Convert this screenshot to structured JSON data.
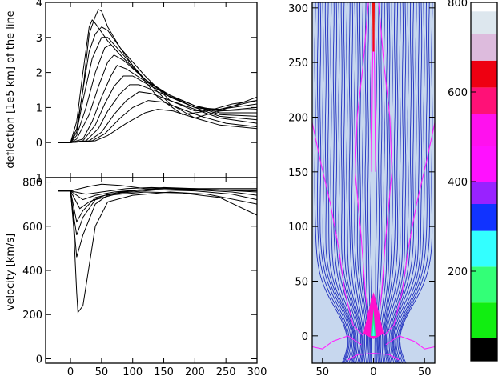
{
  "chart_data": [
    {
      "type": "line",
      "ylabel": "deflection [1e5 km] of the line",
      "xlim": [
        -40,
        300
      ],
      "ylim": [
        -1,
        4
      ],
      "xticks": [
        0,
        50,
        100,
        150,
        200,
        250,
        300
      ],
      "xtick_labels_shown": false,
      "yticks": [
        -1,
        0,
        1,
        2,
        3,
        4
      ],
      "ytick_labels": [
        "-1",
        "0",
        "1",
        "2",
        "3",
        "4"
      ],
      "series": [
        {
          "values": [
            [
              -20,
              0
            ],
            [
              0,
              0
            ],
            [
              10,
              0.3
            ],
            [
              20,
              1.5
            ],
            [
              30,
              3.1
            ],
            [
              40,
              3.6
            ],
            [
              45,
              3.8
            ],
            [
              50,
              3.75
            ],
            [
              60,
              3.3
            ],
            [
              80,
              2.7
            ],
            [
              100,
              2.2
            ],
            [
              140,
              1.3
            ],
            [
              180,
              0.8
            ],
            [
              220,
              0.9
            ],
            [
              260,
              1.1
            ],
            [
              300,
              1.2
            ]
          ]
        },
        {
          "values": [
            [
              -20,
              0
            ],
            [
              0,
              0
            ],
            [
              10,
              0.6
            ],
            [
              20,
              2.0
            ],
            [
              30,
              3.3
            ],
            [
              35,
              3.5
            ],
            [
              40,
              3.4
            ],
            [
              60,
              2.9
            ],
            [
              80,
              2.5
            ],
            [
              120,
              1.8
            ],
            [
              160,
              1.1
            ],
            [
              200,
              0.7
            ],
            [
              240,
              0.9
            ],
            [
              300,
              1.3
            ]
          ]
        },
        {
          "values": [
            [
              -20,
              0
            ],
            [
              0,
              0
            ],
            [
              10,
              0.4
            ],
            [
              20,
              1.5
            ],
            [
              30,
              2.6
            ],
            [
              40,
              3.1
            ],
            [
              50,
              3.3
            ],
            [
              60,
              3.2
            ],
            [
              80,
              2.7
            ],
            [
              120,
              1.9
            ],
            [
              160,
              1.2
            ],
            [
              200,
              0.9
            ],
            [
              240,
              0.95
            ],
            [
              300,
              1.2
            ]
          ]
        },
        {
          "values": [
            [
              -20,
              0
            ],
            [
              0,
              0
            ],
            [
              10,
              0.3
            ],
            [
              20,
              1.2
            ],
            [
              35,
              2.4
            ],
            [
              50,
              3.0
            ],
            [
              60,
              3.0
            ],
            [
              80,
              2.6
            ],
            [
              120,
              1.8
            ],
            [
              160,
              1.3
            ],
            [
              200,
              1.0
            ],
            [
              240,
              0.95
            ],
            [
              300,
              1.1
            ]
          ]
        },
        {
          "values": [
            [
              -20,
              0
            ],
            [
              0,
              0
            ],
            [
              10,
              0.2
            ],
            [
              25,
              1.0
            ],
            [
              40,
              2.0
            ],
            [
              55,
              2.7
            ],
            [
              65,
              2.8
            ],
            [
              80,
              2.5
            ],
            [
              120,
              1.8
            ],
            [
              160,
              1.3
            ],
            [
              200,
              1.0
            ],
            [
              240,
              0.9
            ],
            [
              300,
              1.0
            ]
          ]
        },
        {
          "values": [
            [
              -20,
              0
            ],
            [
              0,
              0
            ],
            [
              10,
              0.1
            ],
            [
              30,
              0.8
            ],
            [
              45,
              1.6
            ],
            [
              60,
              2.3
            ],
            [
              70,
              2.5
            ],
            [
              85,
              2.35
            ],
            [
              120,
              1.8
            ],
            [
              160,
              1.35
            ],
            [
              200,
              1.05
            ],
            [
              240,
              0.9
            ],
            [
              300,
              0.95
            ]
          ]
        },
        {
          "values": [
            [
              -20,
              0
            ],
            [
              0,
              0
            ],
            [
              20,
              0.1
            ],
            [
              35,
              0.6
            ],
            [
              50,
              1.3
            ],
            [
              65,
              1.9
            ],
            [
              75,
              2.2
            ],
            [
              90,
              2.1
            ],
            [
              120,
              1.75
            ],
            [
              160,
              1.35
            ],
            [
              200,
              1.05
            ],
            [
              240,
              0.85
            ],
            [
              300,
              0.85
            ]
          ]
        },
        {
          "values": [
            [
              -20,
              0
            ],
            [
              0,
              0
            ],
            [
              20,
              0.05
            ],
            [
              40,
              0.5
            ],
            [
              55,
              1.1
            ],
            [
              70,
              1.6
            ],
            [
              85,
              1.9
            ],
            [
              100,
              1.9
            ],
            [
              130,
              1.6
            ],
            [
              160,
              1.35
            ],
            [
              200,
              1.05
            ],
            [
              240,
              0.8
            ],
            [
              300,
              0.75
            ]
          ]
        },
        {
          "values": [
            [
              -20,
              0
            ],
            [
              0,
              0
            ],
            [
              25,
              0.05
            ],
            [
              45,
              0.4
            ],
            [
              60,
              0.9
            ],
            [
              80,
              1.4
            ],
            [
              95,
              1.65
            ],
            [
              110,
              1.65
            ],
            [
              140,
              1.45
            ],
            [
              170,
              1.25
            ],
            [
              200,
              1.0
            ],
            [
              240,
              0.75
            ],
            [
              300,
              0.65
            ]
          ]
        },
        {
          "values": [
            [
              -20,
              0
            ],
            [
              0,
              0
            ],
            [
              30,
              0.05
            ],
            [
              50,
              0.3
            ],
            [
              70,
              0.8
            ],
            [
              90,
              1.2
            ],
            [
              110,
              1.45
            ],
            [
              130,
              1.4
            ],
            [
              160,
              1.2
            ],
            [
              200,
              0.95
            ],
            [
              240,
              0.7
            ],
            [
              300,
              0.55
            ]
          ]
        },
        {
          "values": [
            [
              -20,
              0
            ],
            [
              0,
              0
            ],
            [
              35,
              0.05
            ],
            [
              55,
              0.25
            ],
            [
              80,
              0.7
            ],
            [
              100,
              1.0
            ],
            [
              125,
              1.2
            ],
            [
              150,
              1.15
            ],
            [
              180,
              0.95
            ],
            [
              210,
              0.75
            ],
            [
              250,
              0.55
            ],
            [
              300,
              0.45
            ]
          ]
        },
        {
          "values": [
            [
              -20,
              0
            ],
            [
              0,
              0
            ],
            [
              40,
              0.05
            ],
            [
              60,
              0.2
            ],
            [
              90,
              0.55
            ],
            [
              120,
              0.85
            ],
            [
              140,
              0.95
            ],
            [
              165,
              0.9
            ],
            [
              200,
              0.7
            ],
            [
              240,
              0.5
            ],
            [
              300,
              0.4
            ]
          ]
        }
      ]
    },
    {
      "type": "line",
      "ylabel": "velocity [km/s]",
      "xlim": [
        -40,
        300
      ],
      "ylim": [
        -20,
        820
      ],
      "xticks": [
        0,
        50,
        100,
        150,
        200,
        250,
        300
      ],
      "xtick_labels": [
        "0",
        "50",
        "100",
        "150",
        "200",
        "250",
        "300"
      ],
      "yticks": [
        0,
        200,
        400,
        600,
        800
      ],
      "ytick_labels": [
        "0",
        "200",
        "400",
        "600",
        "800"
      ],
      "series": [
        {
          "values": [
            [
              -20,
              760
            ],
            [
              0,
              760
            ],
            [
              5,
              600
            ],
            [
              10,
              300
            ],
            [
              12,
              210
            ],
            [
              20,
              240
            ],
            [
              40,
              600
            ],
            [
              60,
              710
            ],
            [
              100,
              740
            ],
            [
              160,
              755
            ],
            [
              220,
              745
            ],
            [
              300,
              700
            ]
          ]
        },
        {
          "values": [
            [
              -20,
              760
            ],
            [
              0,
              760
            ],
            [
              5,
              620
            ],
            [
              10,
              460
            ],
            [
              20,
              560
            ],
            [
              40,
              700
            ],
            [
              60,
              740
            ],
            [
              120,
              755
            ],
            [
              180,
              750
            ],
            [
              240,
              730
            ],
            [
              300,
              650
            ]
          ]
        },
        {
          "values": [
            [
              -20,
              760
            ],
            [
              0,
              760
            ],
            [
              5,
              650
            ],
            [
              10,
              560
            ],
            [
              20,
              640
            ],
            [
              40,
              720
            ],
            [
              80,
              750
            ],
            [
              140,
              765
            ],
            [
              200,
              760
            ],
            [
              260,
              745
            ],
            [
              300,
              720
            ]
          ]
        },
        {
          "values": [
            [
              -20,
              760
            ],
            [
              0,
              760
            ],
            [
              10,
              620
            ],
            [
              20,
              670
            ],
            [
              40,
              730
            ],
            [
              80,
              755
            ],
            [
              140,
              770
            ],
            [
              200,
              765
            ],
            [
              260,
              755
            ],
            [
              300,
              740
            ]
          ]
        },
        {
          "values": [
            [
              -20,
              760
            ],
            [
              0,
              760
            ],
            [
              15,
              680
            ],
            [
              30,
              710
            ],
            [
              60,
              745
            ],
            [
              100,
              760
            ],
            [
              150,
              775
            ],
            [
              200,
              770
            ],
            [
              300,
              755
            ]
          ]
        },
        {
          "values": [
            [
              -20,
              760
            ],
            [
              0,
              760
            ],
            [
              20,
              720
            ],
            [
              40,
              740
            ],
            [
              70,
              755
            ],
            [
              110,
              765
            ],
            [
              160,
              770
            ],
            [
              220,
              765
            ],
            [
              300,
              760
            ]
          ]
        },
        {
          "values": [
            [
              -20,
              760
            ],
            [
              0,
              760
            ],
            [
              25,
              745
            ],
            [
              50,
              755
            ],
            [
              90,
              770
            ],
            [
              130,
              775
            ],
            [
              180,
              770
            ],
            [
              240,
              765
            ],
            [
              300,
              765
            ]
          ]
        },
        {
          "values": [
            [
              -20,
              760
            ],
            [
              0,
              760
            ],
            [
              30,
              780
            ],
            [
              50,
              790
            ],
            [
              80,
              785
            ],
            [
              120,
              770
            ],
            [
              170,
              770
            ],
            [
              230,
              770
            ],
            [
              300,
              770
            ]
          ]
        }
      ]
    },
    {
      "type": "heatmap",
      "xlim": [
        -60,
        60
      ],
      "ylim": [
        -25,
        305
      ],
      "xticks": [
        -50,
        0,
        50
      ],
      "xtick_labels": [
        "50",
        "0",
        "50"
      ],
      "yticks": [
        0,
        50,
        100,
        150,
        200,
        250,
        300
      ],
      "ytick_labels": [
        "0",
        "50",
        "100",
        "150",
        "200",
        "250",
        "300"
      ],
      "background_color": "#c7d7ee",
      "contour_color": "#1f2fbf",
      "magenta_curve_color": "#ff22ff",
      "red_core_color": "#ee1111"
    },
    {
      "type": "heatmap",
      "role": "colorbar",
      "ticks": [
        200,
        400,
        600,
        800
      ],
      "tick_labels": [
        "200",
        "400",
        "600",
        "800"
      ],
      "range": [
        0,
        800
      ],
      "bands": [
        {
          "from": 0,
          "to": 50,
          "color": "#000000"
        },
        {
          "from": 50,
          "to": 130,
          "color": "#11ee11"
        },
        {
          "from": 130,
          "to": 210,
          "color": "#33ff77"
        },
        {
          "from": 210,
          "to": 290,
          "color": "#33ffff"
        },
        {
          "from": 290,
          "to": 350,
          "color": "#1133ff"
        },
        {
          "from": 350,
          "to": 400,
          "color": "#9922ff"
        },
        {
          "from": 400,
          "to": 480,
          "color": "#ff11ff"
        },
        {
          "from": 480,
          "to": 550,
          "color": "#ff11ee"
        },
        {
          "from": 550,
          "to": 610,
          "color": "#ff1177"
        },
        {
          "from": 610,
          "to": 670,
          "color": "#ee0011"
        },
        {
          "from": 670,
          "to": 730,
          "color": "#ddbbdd"
        },
        {
          "from": 730,
          "to": 780,
          "color": "#dde7ee"
        },
        {
          "from": 780,
          "to": 800,
          "color": "#ffffff"
        }
      ]
    }
  ]
}
